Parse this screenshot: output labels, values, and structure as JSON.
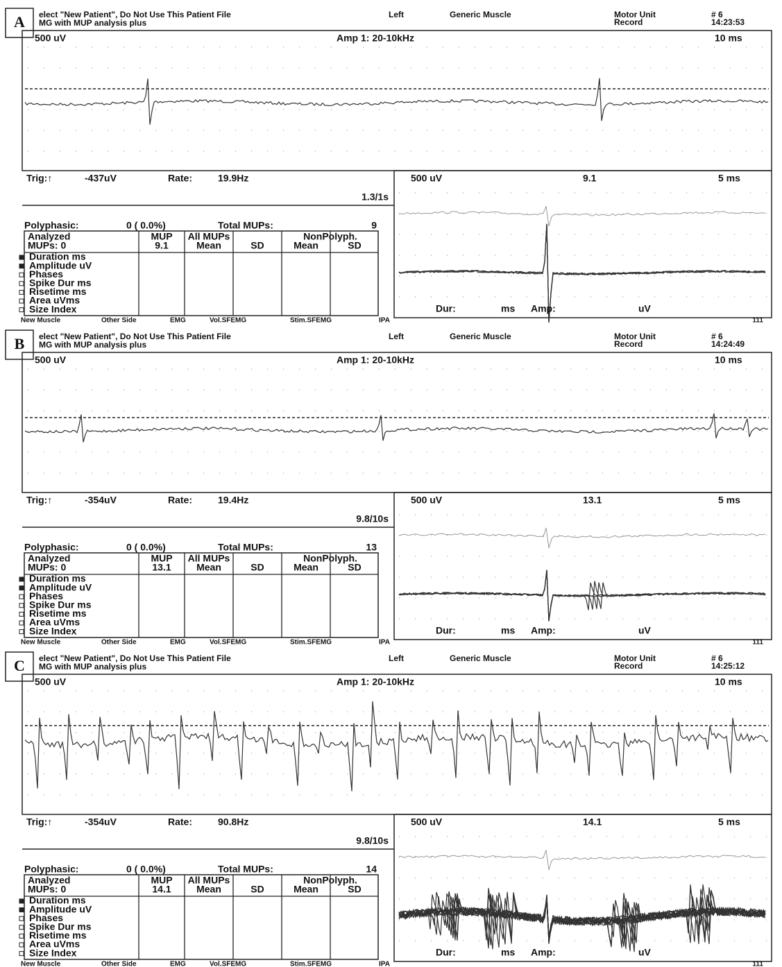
{
  "panels": [
    {
      "letter": "A",
      "header": {
        "line1": "elect \"New Patient\",  Do Not Use This Patient File",
        "line2": "MG with MUP analysis plus",
        "side": "Left",
        "muscle": "Generic Muscle",
        "mode1": "Motor Unit",
        "mode2": "Record",
        "unit": "# 6",
        "time": "14:23:53"
      },
      "trace": {
        "scale": "500 uV",
        "amp": "Amp 1: 20-10kHz",
        "sweep": "10 ms"
      },
      "trig": "Trig:↑",
      "trig_value": "-437uV",
      "rate_label": "Rate:",
      "rate": "19.9Hz",
      "count": "1.3/1s",
      "mup_view": {
        "scale": "500 uV",
        "id": "9.1",
        "sweep": "5 ms",
        "dur": "Dur:",
        "ms": "ms",
        "amp": "Amp:",
        "uv": "uV"
      },
      "polyphasic_label": "Polyphasic:",
      "polyphasic": "0 ( 0.0%)",
      "total_label": "Total MUPs:",
      "total": "9",
      "table": {
        "analyzed": "Analyzed",
        "mups": "MUPs:  0",
        "mup": "MUP",
        "mup_id": "9.1",
        "all": "All MUPs",
        "nonpoly": "NonPolyph.",
        "mean1": "Mean",
        "sd1": "SD",
        "mean2": "Mean",
        "sd2": "SD",
        "rows": [
          "Duration ms",
          "Amplitude uV",
          "Phases",
          "Spike Dur ms",
          "Risetime ms",
          "Area uVms",
          "Size Index"
        ]
      },
      "footer": [
        "New Muscle",
        "Other Side",
        "EMG",
        "Vol.SFEMG",
        "Stim.SFEMG",
        "IPA",
        "111"
      ]
    },
    {
      "letter": "B",
      "header": {
        "line1": "elect \"New Patient\",  Do Not Use This Patient File",
        "line2": "MG with MUP analysis plus",
        "side": "Left",
        "muscle": "Generic Muscle",
        "mode1": "Motor Unit",
        "mode2": "Record",
        "unit": "# 6",
        "time": "14:24:49"
      },
      "trace": {
        "scale": "500 uV",
        "amp": "Amp 1: 20-10kHz",
        "sweep": "10 ms"
      },
      "trig": "Trig:↑",
      "trig_value": "-354uV",
      "rate_label": "Rate:",
      "rate": "19.4Hz",
      "count": "9.8/10s",
      "mup_view": {
        "scale": "500 uV",
        "id": "13.1",
        "sweep": "5 ms",
        "dur": "Dur:",
        "ms": "ms",
        "amp": "Amp:",
        "uv": "uV"
      },
      "polyphasic_label": "Polyphasic:",
      "polyphasic": "0 ( 0.0%)",
      "total_label": "Total MUPs:",
      "total": "13",
      "table": {
        "analyzed": "Analyzed",
        "mups": "MUPs:  0",
        "mup": "MUP",
        "mup_id": "13.1",
        "all": "All MUPs",
        "nonpoly": "NonPolyph.",
        "mean1": "Mean",
        "sd1": "SD",
        "mean2": "Mean",
        "sd2": "SD",
        "rows": [
          "Duration ms",
          "Amplitude uV",
          "Phases",
          "Spike Dur ms",
          "Risetime ms",
          "Area uVms",
          "Size Index"
        ]
      },
      "footer": [
        "New Muscle",
        "Other Side",
        "EMG",
        "Vol.SFEMG",
        "Stim.SFEMG",
        "IPA",
        "111"
      ]
    },
    {
      "letter": "C",
      "header": {
        "line1": "elect \"New Patient\",  Do Not Use This Patient File",
        "line2": "MG with MUP analysis plus",
        "side": "Left",
        "muscle": "Generic Muscle",
        "mode1": "Motor Unit",
        "mode2": "Record",
        "unit": "# 6",
        "time": "14:25:12"
      },
      "trace": {
        "scale": "500 uV",
        "amp": "Amp 1: 20-10kHz",
        "sweep": "10 ms"
      },
      "trig": "Trig:↑",
      "trig_value": "-354uV",
      "rate_label": "Rate:",
      "rate": "90.8Hz",
      "count": "9.8/10s",
      "mup_view": {
        "scale": "500 uV",
        "id": "14.1",
        "sweep": "5 ms",
        "dur": "Dur:",
        "ms": "ms",
        "amp": "Amp:",
        "uv": "uV"
      },
      "polyphasic_label": "Polyphasic:",
      "polyphasic": "0 ( 0.0%)",
      "total_label": "Total MUPs:",
      "total": "14",
      "table": {
        "analyzed": "Analyzed",
        "mups": "MUPs:  0",
        "mup": "MUP",
        "mup_id": "14.1",
        "all": "All MUPs",
        "nonpoly": "NonPolyph.",
        "mean1": "Mean",
        "sd1": "SD",
        "mean2": "Mean",
        "sd2": "SD",
        "rows": [
          "Duration ms",
          "Amplitude uV",
          "Phases",
          "Spike Dur ms",
          "Risetime ms",
          "Area uVms",
          "Size Index"
        ]
      },
      "footer": [
        "New Muscle",
        "Other Side",
        "EMG",
        "Vol.SFEMG",
        "Stim.SFEMG",
        "IPA",
        "111"
      ]
    }
  ]
}
